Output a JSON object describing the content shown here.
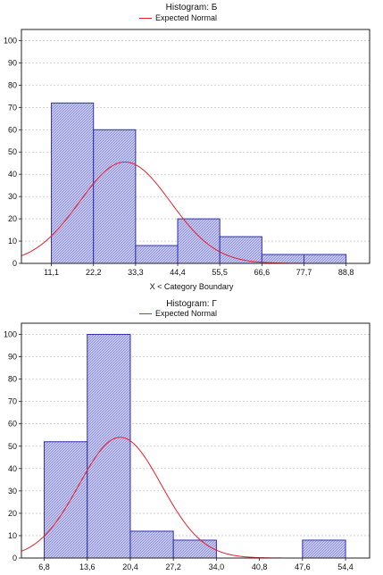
{
  "chart_data": [
    {
      "type": "bar",
      "title": "Histogram: Б",
      "legend": [
        "Expected Normal"
      ],
      "legend_position": "top",
      "xlabel": "X < Category Boundary",
      "ylabel": "",
      "ylim": [
        0,
        105
      ],
      "yticks": [
        0,
        10,
        20,
        30,
        40,
        50,
        60,
        70,
        80,
        90,
        100
      ],
      "xticks": [
        "11,1",
        "22,2",
        "33,3",
        "44,4",
        "55,5",
        "66,6",
        "77,7",
        "88,8"
      ],
      "bins": [
        {
          "from": 11.1,
          "to": 22.2,
          "value": 72
        },
        {
          "from": 22.2,
          "to": 33.3,
          "value": 60
        },
        {
          "from": 33.3,
          "to": 44.4,
          "value": 8
        },
        {
          "from": 44.4,
          "to": 55.5,
          "value": 20
        },
        {
          "from": 55.5,
          "to": 66.6,
          "value": 12
        },
        {
          "from": 66.6,
          "to": 77.7,
          "value": 4
        },
        {
          "from": 77.7,
          "to": 88.8,
          "value": 4
        }
      ],
      "curve": {
        "name": "Expected Normal",
        "mean": 30.5,
        "peak": 45.5,
        "sd": 12.0
      },
      "xrange": [
        3.2,
        95.0
      ],
      "grid": true,
      "colors": {
        "bar_stroke": "#2e2fb8",
        "bar_fill": "#c6c8ec",
        "curve": "#e8202a",
        "grid": "#b8b8b8"
      }
    },
    {
      "type": "bar",
      "title": "Histogram: Г",
      "legend": [
        "Expected Normal"
      ],
      "legend_position": "top",
      "xlabel": "",
      "ylabel": "",
      "ylim": [
        0,
        105
      ],
      "yticks": [
        0,
        10,
        20,
        30,
        40,
        50,
        60,
        70,
        80,
        90,
        100
      ],
      "xticks": [
        "6,8",
        "13,6",
        "20,4",
        "27,2",
        "34,0",
        "40,8",
        "47,6",
        "54,4"
      ],
      "bins": [
        {
          "from": 6.8,
          "to": 13.6,
          "value": 52
        },
        {
          "from": 13.6,
          "to": 20.4,
          "value": 100
        },
        {
          "from": 20.4,
          "to": 27.2,
          "value": 12
        },
        {
          "from": 27.2,
          "to": 34.0,
          "value": 8
        },
        {
          "from": 34.0,
          "to": 40.8,
          "value": 0
        },
        {
          "from": 40.8,
          "to": 47.6,
          "value": 0
        },
        {
          "from": 47.6,
          "to": 54.4,
          "value": 8
        }
      ],
      "curve": {
        "name": "Expected Normal",
        "mean": 18.8,
        "peak": 54.0,
        "sd": 6.5
      },
      "xrange": [
        3.2,
        58.2
      ],
      "grid": true,
      "colors": {
        "bar_stroke": "#2e2fb8",
        "bar_fill": "#c6c8ec",
        "curve": "#e8202a",
        "grid": "#b8b8b8"
      }
    }
  ]
}
